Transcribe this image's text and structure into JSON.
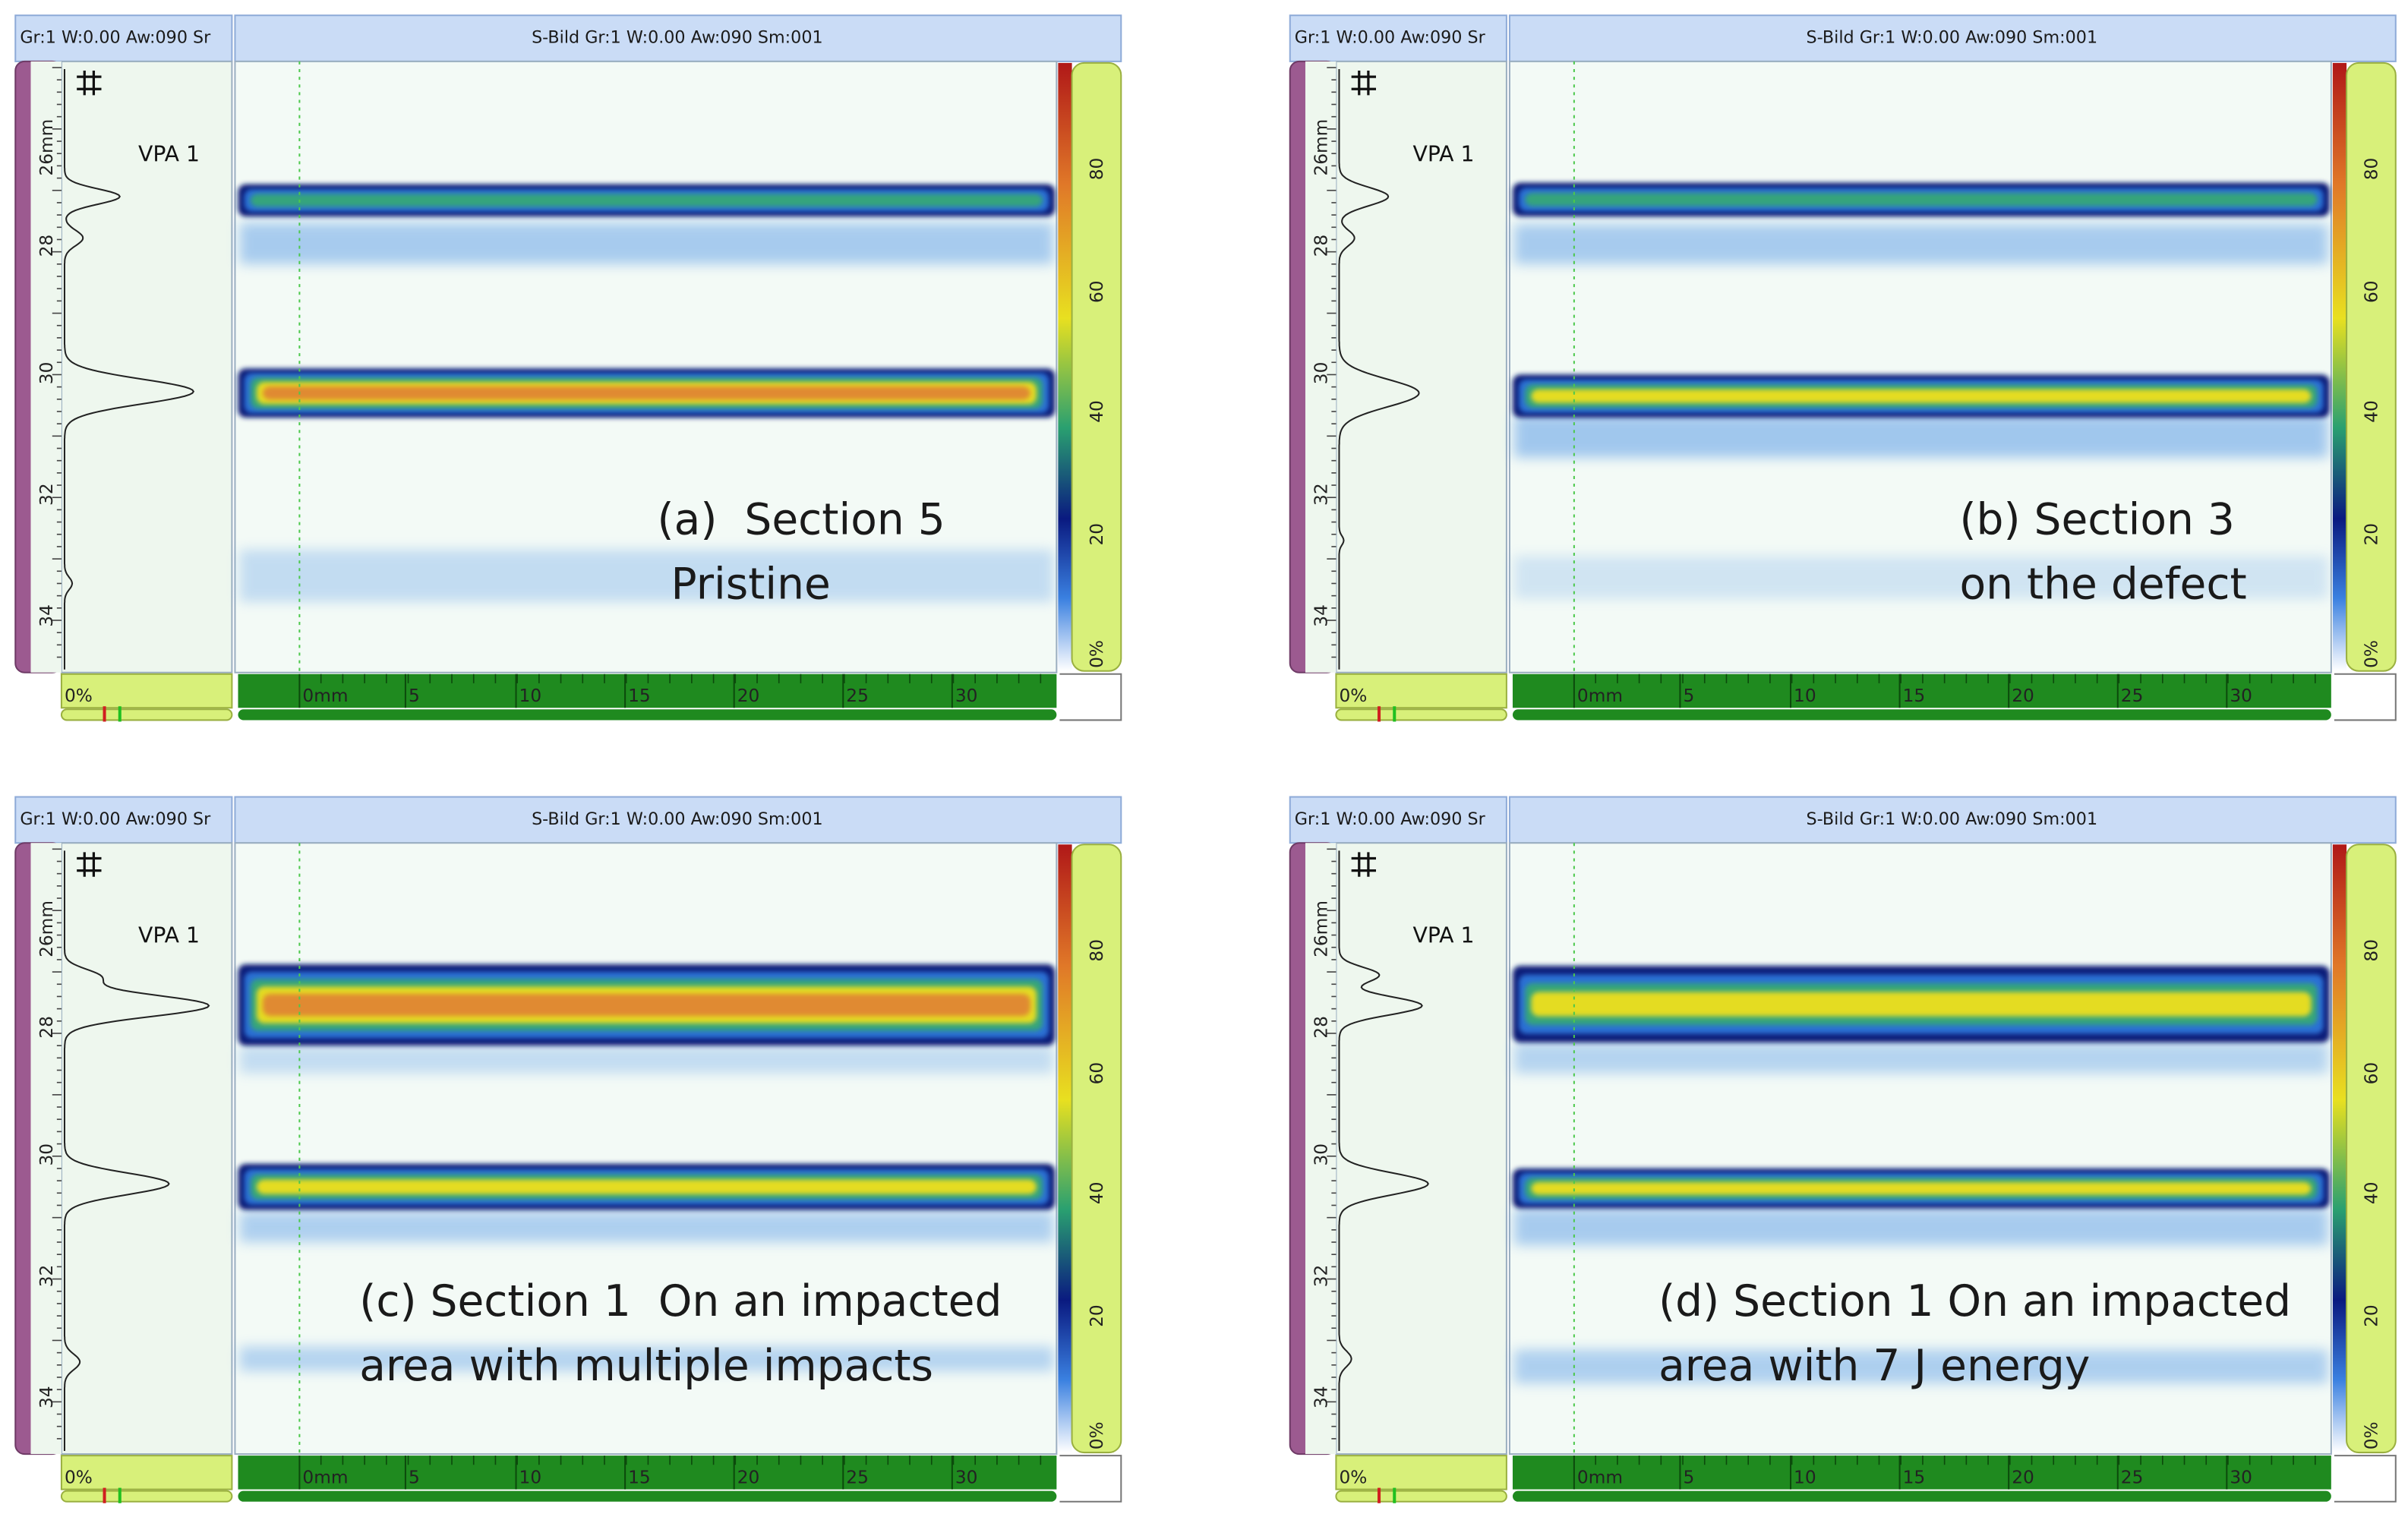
{
  "common": {
    "header_left": "Gr:1 W:0.00 Aw:090 Sr",
    "header_main": "S-Bild Gr:1 W:0.00 Aw:090 Sm:001",
    "channel": "VPA 1",
    "depth_ticks": [
      "26mm",
      "28",
      "30",
      "32",
      "34"
    ],
    "scale_ticks": [
      "80",
      "60",
      "40",
      "20",
      "0%"
    ],
    "x_ticks": [
      "0mm",
      "5",
      "10",
      "15",
      "20",
      "25",
      "30"
    ],
    "amplitude_min": "0%"
  },
  "panels": [
    {
      "caption": [
        "(a)  Section 5",
        " Pristine"
      ]
    },
    {
      "caption": [
        "(b) Section 3",
        "on the defect"
      ]
    },
    {
      "caption": [
        "(c) Section 1  On an impacted",
        "area with multiple impacts"
      ]
    },
    {
      "caption": [
        "(d) Section 1 On an impacted",
        "area with 7 J energy"
      ]
    }
  ]
}
